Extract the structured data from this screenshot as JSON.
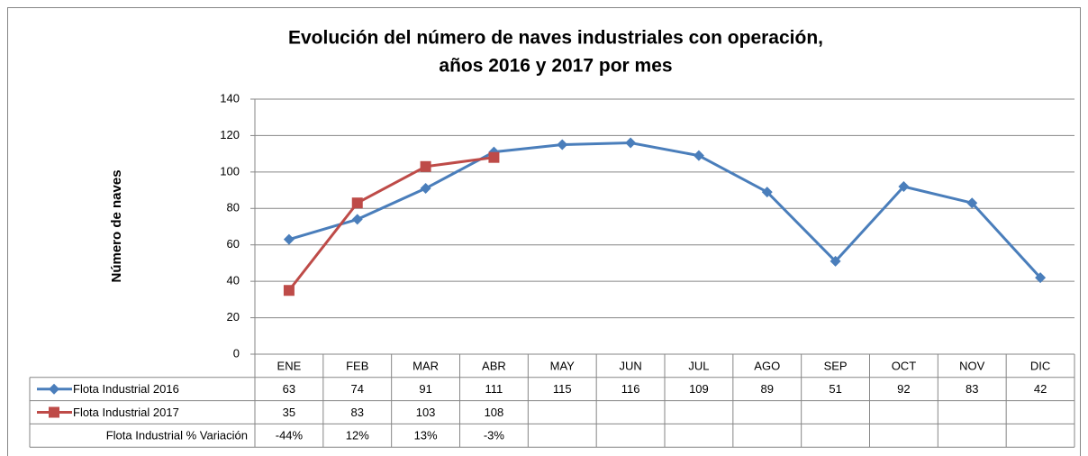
{
  "chart_data": {
    "type": "line",
    "title": [
      "Evolución del número de naves industriales con operación,",
      "años 2016 y 2017 por mes"
    ],
    "y_label": "Número de naves",
    "categories": [
      "ENE",
      "FEB",
      "MAR",
      "ABR",
      "MAY",
      "JUN",
      "JUL",
      "AGO",
      "SEP",
      "OCT",
      "NOV",
      "DIC"
    ],
    "series": [
      {
        "name": "Flota Industrial 2016",
        "color": "#4a7ebb",
        "marker": "diamond",
        "values": [
          63,
          74,
          91,
          111,
          115,
          116,
          109,
          89,
          51,
          92,
          83,
          42
        ]
      },
      {
        "name": "Flota Industrial 2017",
        "color": "#be4b48",
        "marker": "square",
        "values": [
          35,
          83,
          103,
          108,
          null,
          null,
          null,
          null,
          null,
          null,
          null,
          null
        ]
      }
    ],
    "table_rows": [
      {
        "name": "Flota Industrial % Variación",
        "values": [
          -44,
          12,
          13,
          -3,
          null,
          null,
          null,
          null,
          null,
          null,
          null,
          null
        ],
        "value_labels": [
          "-44%",
          "12%",
          "13%",
          "-3%",
          null,
          null,
          null,
          null,
          null,
          null,
          null,
          null
        ]
      }
    ],
    "ylim": [
      0,
      140
    ],
    "yticks": [
      0,
      20,
      40,
      60,
      80,
      100,
      120,
      140
    ],
    "grid": true
  }
}
